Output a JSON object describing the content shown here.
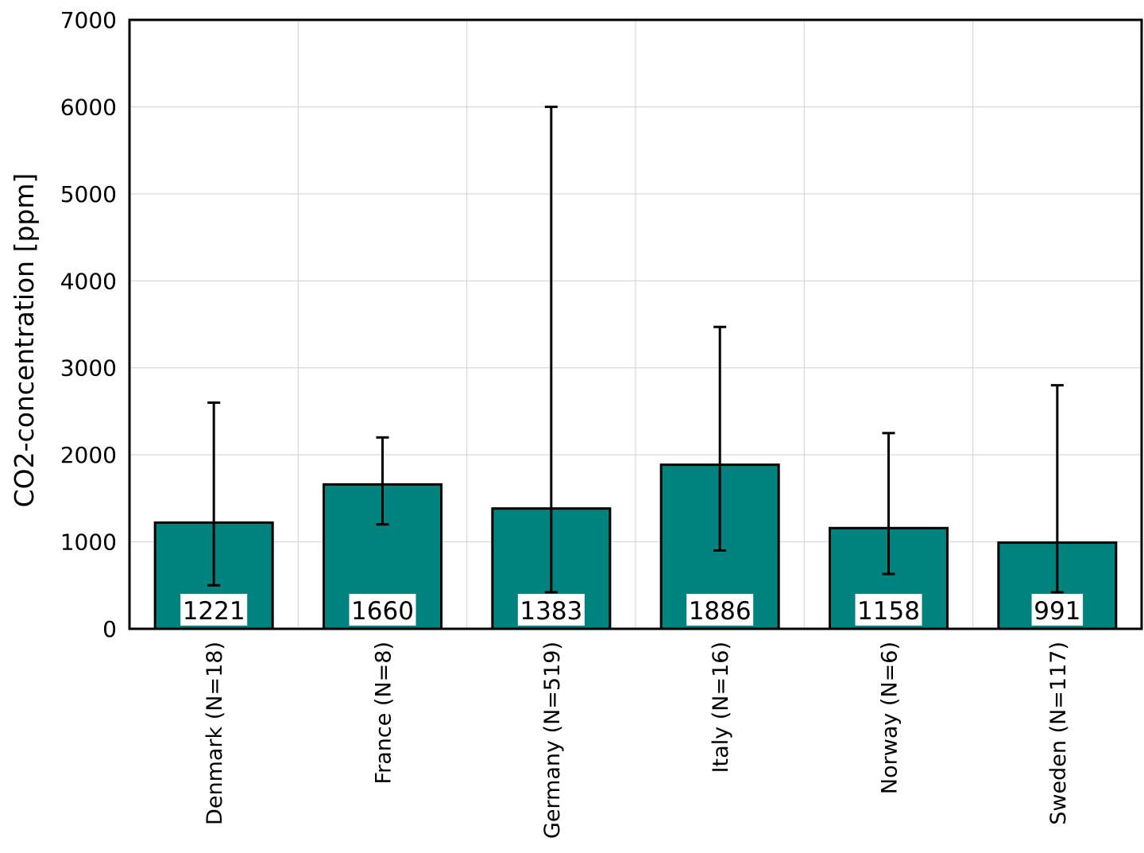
{
  "chart_data": {
    "type": "bar",
    "title": "",
    "xlabel": "",
    "ylabel": "CO2-concentration [ppm]",
    "ylim": [
      0,
      7000
    ],
    "yticks": [
      0,
      1000,
      2000,
      3000,
      4000,
      5000,
      6000,
      7000
    ],
    "grid": true,
    "bar_color": "#00837f",
    "categories": [
      "Denmark (N=18)",
      "France (N=8)",
      "Germany (N=519)",
      "Italy (N=16)",
      "Norway (N=6)",
      "Sweden (N=117)"
    ],
    "values": [
      1221,
      1660,
      1383,
      1886,
      1158,
      991
    ],
    "value_labels": [
      "1221",
      "1660",
      "1383",
      "1886",
      "1158",
      "991"
    ],
    "error_low": [
      500,
      1200,
      420,
      900,
      630,
      420
    ],
    "error_high": [
      2600,
      2200,
      6000,
      3470,
      2250,
      2800
    ]
  }
}
